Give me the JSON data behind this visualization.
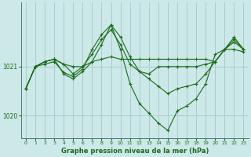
{
  "title": "Graphe pression niveau de la mer (hPa)",
  "background_color": "#cce8e8",
  "plot_bg_color": "#cce8e8",
  "grid_color": "#aacccc",
  "line_color": "#1a6b1a",
  "xlim": [
    -0.5,
    23.5
  ],
  "ylim": [
    1019.55,
    1022.3
  ],
  "yticks": [
    1020,
    1021
  ],
  "xticks": [
    0,
    1,
    2,
    3,
    4,
    5,
    6,
    7,
    8,
    9,
    10,
    11,
    12,
    13,
    14,
    15,
    16,
    17,
    18,
    19,
    20,
    21,
    22,
    23
  ],
  "series": [
    [
      1020.55,
      1021.0,
      1021.1,
      1021.15,
      1021.05,
      1021.0,
      1021.0,
      1021.1,
      1021.15,
      1021.2,
      1021.15,
      1021.15,
      1021.15,
      1021.15,
      1021.15,
      1021.15,
      1021.15,
      1021.15,
      1021.15,
      1021.15,
      1021.1,
      1021.35,
      1021.35,
      1021.3
    ],
    [
      1020.55,
      1021.0,
      1021.1,
      1021.15,
      1021.05,
      1020.85,
      1021.0,
      1021.25,
      1021.55,
      1021.75,
      1021.45,
      1021.05,
      1020.9,
      1020.85,
      1021.0,
      1021.0,
      1021.0,
      1021.0,
      1021.0,
      1021.05,
      1021.1,
      1021.35,
      1021.5,
      1021.35
    ],
    [
      1020.55,
      1021.0,
      1021.05,
      1021.1,
      1020.88,
      1020.8,
      1020.95,
      1021.35,
      1021.65,
      1021.85,
      1021.6,
      1021.2,
      1020.9,
      1020.75,
      1020.6,
      1020.45,
      1020.55,
      1020.6,
      1020.65,
      1020.85,
      1021.1,
      1021.35,
      1021.55,
      1021.35
    ],
    [
      1020.55,
      1021.0,
      1021.1,
      1021.15,
      1020.85,
      1020.75,
      1020.9,
      1021.1,
      1021.45,
      1021.85,
      1021.35,
      1020.65,
      1020.25,
      1020.05,
      1019.85,
      1019.7,
      1020.1,
      1020.2,
      1020.35,
      1020.65,
      1021.25,
      1021.35,
      1021.6,
      1021.35
    ]
  ]
}
